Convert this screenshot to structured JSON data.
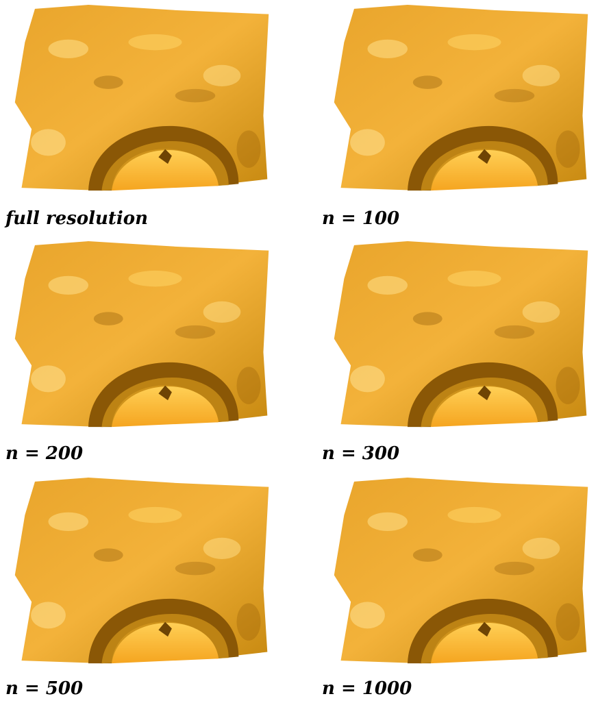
{
  "panels": [
    {
      "caption": "full resolution"
    },
    {
      "caption": "n = 100"
    },
    {
      "caption": "n = 200"
    },
    {
      "caption": "n = 300"
    },
    {
      "caption": "n = 500"
    },
    {
      "caption": "n = 1000"
    }
  ]
}
